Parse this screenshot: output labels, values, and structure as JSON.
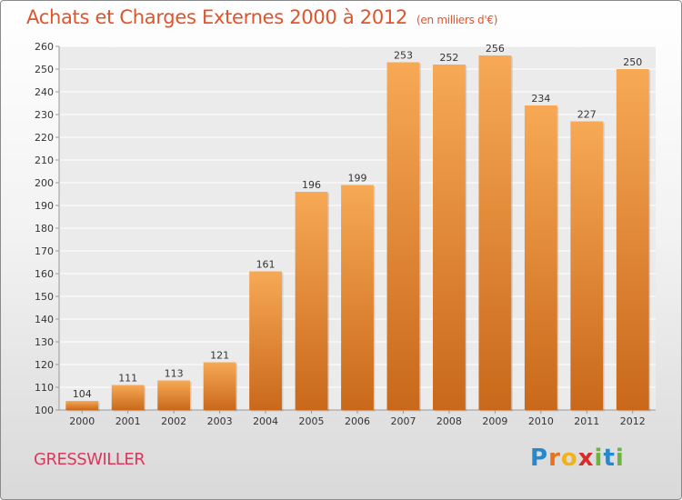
{
  "chart_data": {
    "type": "bar",
    "title": "Achats et Charges Externes 2000 à 2012",
    "subtitle": "(en milliers d'€)",
    "categories": [
      "2000",
      "2001",
      "2002",
      "2003",
      "2004",
      "2005",
      "2006",
      "2007",
      "2008",
      "2009",
      "2010",
      "2011",
      "2012"
    ],
    "values": [
      104,
      111,
      113,
      121,
      161,
      196,
      199,
      253,
      252,
      256,
      234,
      227,
      250
    ],
    "ylim": [
      100,
      260
    ],
    "yticks": [
      100,
      110,
      120,
      130,
      140,
      150,
      160,
      170,
      180,
      190,
      200,
      210,
      220,
      230,
      240,
      250,
      260
    ],
    "grid": true,
    "bar_color_top": "#f7a955",
    "bar_color_bottom": "#c9681a",
    "xlabel": "",
    "ylabel": ""
  },
  "commune": "GRESSWILLER",
  "brand": {
    "letters": [
      "P",
      "r",
      "o",
      "x",
      "i",
      "t",
      "i"
    ],
    "colors": [
      "#2a88c8",
      "#e8731a",
      "#f2b21c",
      "#d92b2b",
      "#6db33f",
      "#2a88c8",
      "#6db33f"
    ]
  }
}
